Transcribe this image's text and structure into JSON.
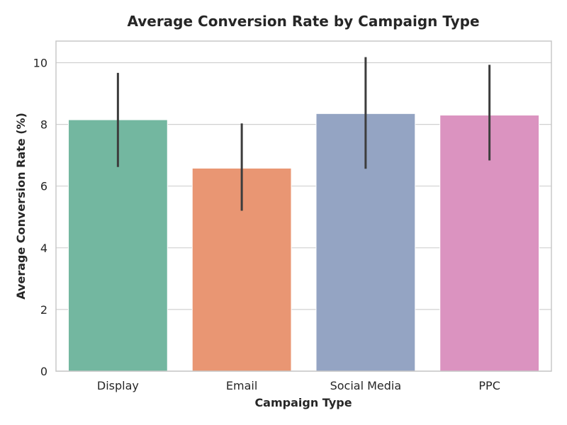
{
  "chart_data": {
    "type": "bar",
    "title": "Average Conversion Rate by Campaign Type",
    "xlabel": "Campaign Type",
    "ylabel": "Average Conversion Rate (%)",
    "categories": [
      "Display",
      "Email",
      "Social Media",
      "PPC"
    ],
    "values": [
      8.15,
      6.58,
      8.35,
      8.3
    ],
    "error_low": [
      6.62,
      5.2,
      6.56,
      6.83
    ],
    "error_high": [
      9.67,
      8.03,
      10.18,
      9.93
    ],
    "colors": [
      "#73b7a0",
      "#e99673",
      "#94a4c3",
      "#db93c0"
    ],
    "error_bar_color": "#3d3d3d",
    "ylim": [
      0,
      10.7
    ],
    "yticks": [
      0,
      2,
      4,
      6,
      8,
      10
    ],
    "grid": true,
    "legend": "none"
  }
}
